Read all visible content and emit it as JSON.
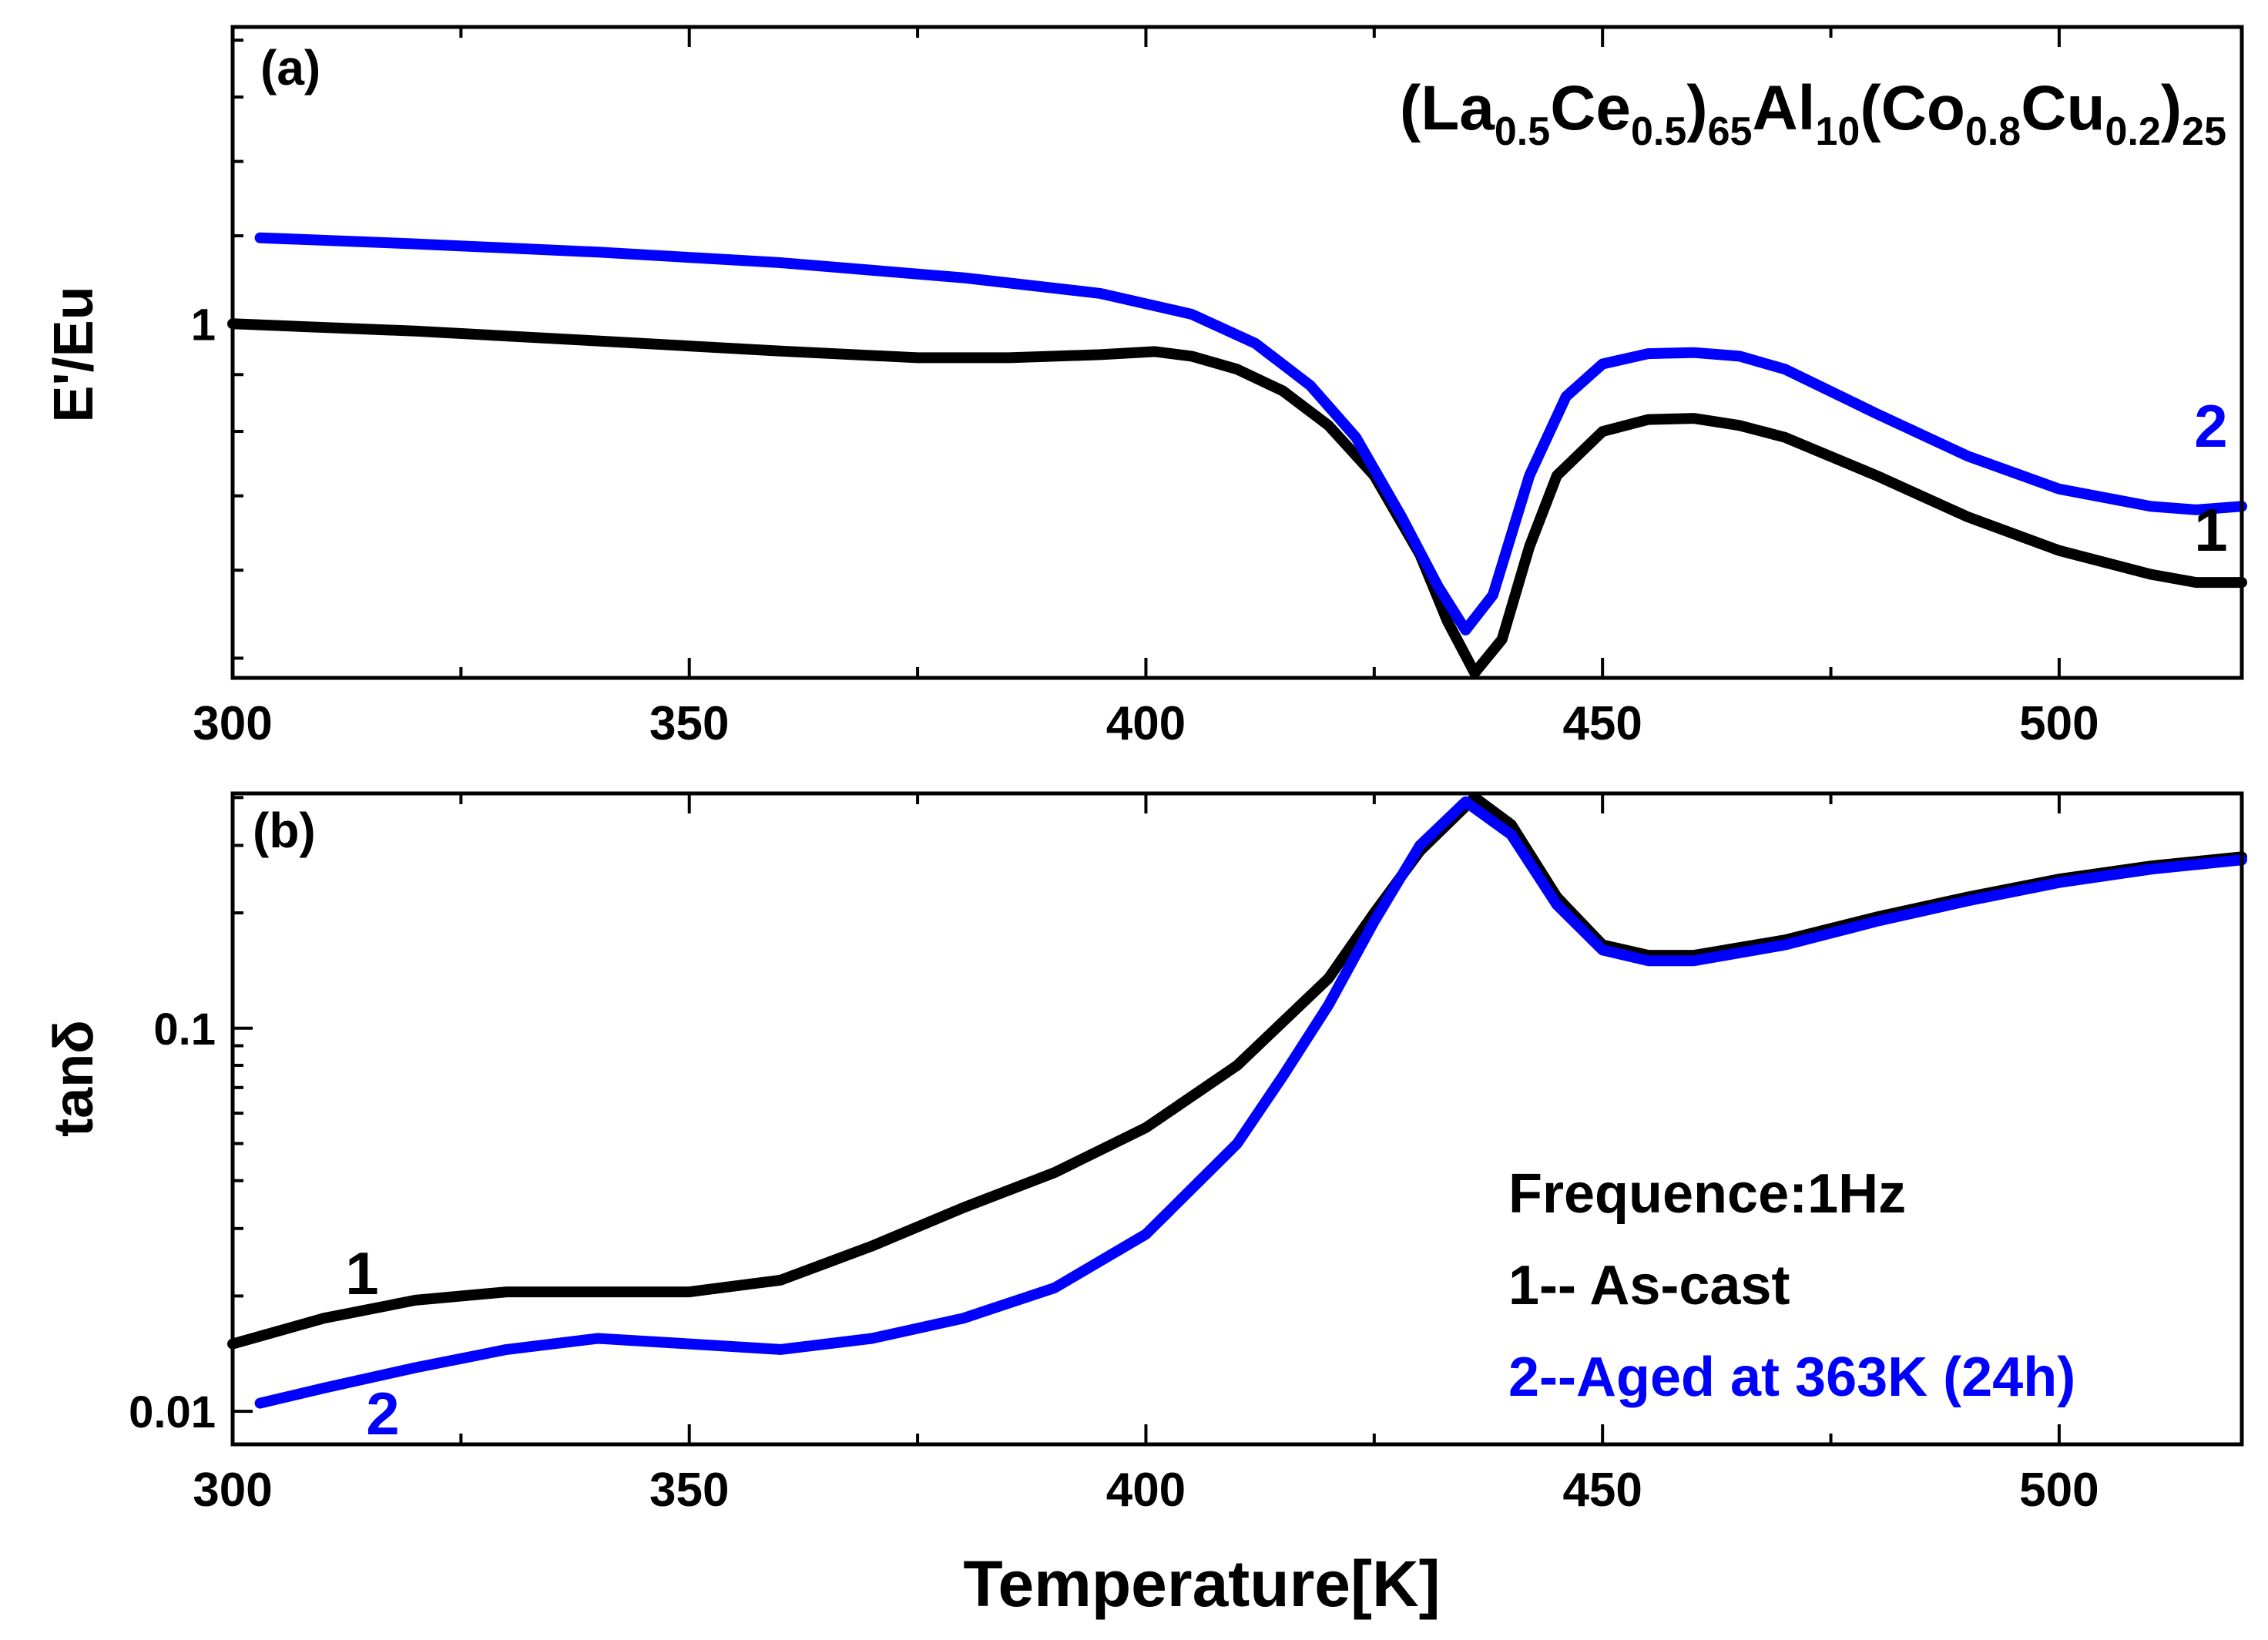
{
  "chart_data": [
    {
      "type": "line",
      "panel_label": "(a)",
      "title": "(La0.5Ce0.5)65Al10(Co0.8Cu0.2)25",
      "xlabel": "",
      "ylabel": "E'/Eu",
      "xlim": [
        300,
        520
      ],
      "ylim": [
        0.48,
        1.85
      ],
      "yscale": "log",
      "x_ticks": [
        "300",
        "350",
        "400",
        "450",
        "500"
      ],
      "y_tick_labels": [
        "1"
      ],
      "series": [
        {
          "name": "1",
          "color": "#000000",
          "x": [
            300,
            320,
            340,
            360,
            375,
            385,
            395,
            401,
            405,
            410,
            415,
            420,
            425,
            430,
            433,
            436,
            439,
            442,
            445,
            450,
            455,
            460,
            465,
            470,
            480,
            490,
            500,
            510,
            515,
            520
          ],
          "y": [
            1.0,
            0.985,
            0.965,
            0.945,
            0.932,
            0.932,
            0.938,
            0.944,
            0.935,
            0.91,
            0.87,
            0.81,
            0.73,
            0.62,
            0.54,
            0.485,
            0.52,
            0.63,
            0.73,
            0.8,
            0.82,
            0.822,
            0.81,
            0.79,
            0.73,
            0.67,
            0.625,
            0.595,
            0.585,
            0.585
          ]
        },
        {
          "name": "2",
          "color": "#0000ff",
          "x": [
            303,
            320,
            340,
            360,
            380,
            395,
            405,
            412,
            418,
            423,
            428,
            432,
            435,
            438,
            442,
            446,
            450,
            455,
            460,
            465,
            470,
            480,
            490,
            500,
            510,
            515,
            520
          ],
          "y": [
            1.195,
            1.18,
            1.16,
            1.135,
            1.1,
            1.065,
            1.02,
            0.96,
            0.88,
            0.79,
            0.67,
            0.58,
            0.53,
            0.57,
            0.73,
            0.86,
            0.92,
            0.94,
            0.942,
            0.935,
            0.91,
            0.83,
            0.76,
            0.71,
            0.685,
            0.68,
            0.685
          ]
        }
      ],
      "annotations": [
        "1",
        "2"
      ]
    },
    {
      "type": "line",
      "panel_label": "(b)",
      "xlabel": "Temperature[K]",
      "ylabel": "tanδ",
      "xlim": [
        300,
        520
      ],
      "ylim": [
        0.0082,
        0.41
      ],
      "yscale": "log",
      "x_ticks": [
        "300",
        "350",
        "400",
        "450",
        "500"
      ],
      "y_tick_labels": [
        "0.01",
        "0.1"
      ],
      "series": [
        {
          "name": "1",
          "color": "#000000",
          "x": [
            300,
            310,
            320,
            330,
            340,
            350,
            360,
            370,
            380,
            390,
            400,
            410,
            420,
            425,
            430,
            436,
            440,
            445,
            450,
            455,
            460,
            470,
            480,
            490,
            500,
            510,
            520
          ],
          "y": [
            0.015,
            0.0175,
            0.0195,
            0.0205,
            0.0205,
            0.0205,
            0.022,
            0.027,
            0.034,
            0.042,
            0.055,
            0.08,
            0.135,
            0.2,
            0.29,
            0.4,
            0.34,
            0.22,
            0.165,
            0.155,
            0.155,
            0.17,
            0.195,
            0.22,
            0.245,
            0.265,
            0.28
          ]
        },
        {
          "name": "2",
          "color": "#0000ff",
          "x": [
            303,
            310,
            320,
            330,
            340,
            350,
            360,
            370,
            380,
            390,
            400,
            410,
            415,
            420,
            425,
            430,
            435,
            440,
            445,
            450,
            455,
            460,
            470,
            480,
            490,
            500,
            510,
            520
          ],
          "y": [
            0.0105,
            0.0115,
            0.013,
            0.0145,
            0.0155,
            0.015,
            0.0145,
            0.0155,
            0.0175,
            0.021,
            0.029,
            0.05,
            0.075,
            0.115,
            0.19,
            0.3,
            0.39,
            0.32,
            0.21,
            0.16,
            0.15,
            0.15,
            0.165,
            0.19,
            0.215,
            0.24,
            0.26,
            0.275
          ]
        }
      ],
      "annotations": [
        "1",
        "2"
      ],
      "legend": [
        "Frequence:1Hz",
        "1-- As-cast",
        "2--Aged at 363K (24h)"
      ]
    }
  ],
  "title_parts": {
    "open": "(La",
    "s1": "0.5",
    "ce": "Ce",
    "s2": "0.5",
    "close1": ")",
    "s3": "65",
    "al": "Al",
    "s4": "10",
    "co_open": "(Co",
    "s5": "0.8",
    "cu": "Cu",
    "s6": "0.2",
    "close2": ")",
    "s7": "25"
  },
  "colors": {
    "series1": "#000000",
    "series2": "#0000ff",
    "axis": "#000000"
  }
}
